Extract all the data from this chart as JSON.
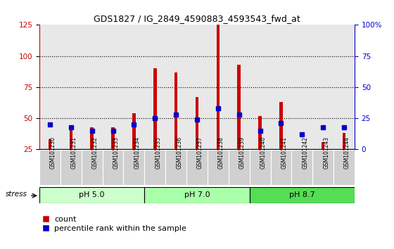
{
  "title": "GDS1827 / IG_2849_4590883_4593543_fwd_at",
  "samples": [
    "GSM101230",
    "GSM101231",
    "GSM101232",
    "GSM101233",
    "GSM101234",
    "GSM101235",
    "GSM101236",
    "GSM101237",
    "GSM101238",
    "GSM101239",
    "GSM101240",
    "GSM101241",
    "GSM101242",
    "GSM101243",
    "GSM101244"
  ],
  "counts": [
    33,
    43,
    43,
    43,
    54,
    90,
    87,
    67,
    125,
    93,
    52,
    63,
    22,
    31,
    38
  ],
  "blue_y": [
    45,
    43,
    40,
    40,
    45,
    50,
    53,
    49,
    58,
    53,
    40,
    46,
    37,
    43,
    43
  ],
  "groups": [
    {
      "label": "pH 5.0",
      "start": 0,
      "end": 5,
      "color": "#ccffcc"
    },
    {
      "label": "pH 7.0",
      "start": 5,
      "end": 10,
      "color": "#aaffaa"
    },
    {
      "label": "pH 8.7",
      "start": 10,
      "end": 15,
      "color": "#55dd55"
    }
  ],
  "ylim_left": [
    25,
    125
  ],
  "ylim_right": [
    0,
    100
  ],
  "yticks_left": [
    25,
    50,
    75,
    100,
    125
  ],
  "ytick_labels_left": [
    "25",
    "50",
    "75",
    "100",
    "125"
  ],
  "yticks_right_vals": [
    0,
    25,
    50,
    75,
    100
  ],
  "ytick_labels_right": [
    "0",
    "25",
    "50",
    "75",
    "100%"
  ],
  "bar_color": "#cc0000",
  "blue_color": "#0000cc",
  "bar_width": 0.15,
  "grid_yticks": [
    50,
    75,
    100
  ],
  "stress_label": "stress",
  "legend_count": "count",
  "legend_pct": "percentile rank within the sample"
}
